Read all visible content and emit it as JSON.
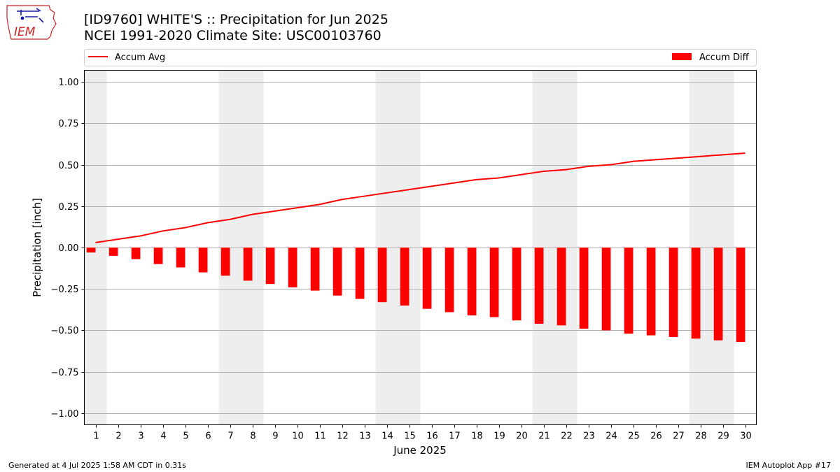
{
  "logo": {
    "text": "IEM"
  },
  "chart_data": {
    "type": "bar",
    "title": "[ID9760] WHITE'S :: Precipitation for Jun 2025",
    "subtitle": "NCEI 1991-2020 Climate Site: USC00103760",
    "xlabel": "June 2025",
    "ylabel": "Precipitation [inch]",
    "ylim": [
      -1.07,
      1.07
    ],
    "yticks": [
      1.0,
      0.75,
      0.5,
      0.25,
      0.0,
      -0.25,
      -0.5,
      -0.75,
      -1.0
    ],
    "ytick_labels": [
      "1.00",
      "0.75",
      "0.50",
      "0.25",
      "0.00",
      "−0.25",
      "−0.50",
      "−0.75",
      "−1.00"
    ],
    "x": [
      1,
      2,
      3,
      4,
      5,
      6,
      7,
      8,
      9,
      10,
      11,
      12,
      13,
      14,
      15,
      16,
      17,
      18,
      19,
      20,
      21,
      22,
      23,
      24,
      25,
      26,
      27,
      28,
      29,
      30
    ],
    "xtick_labels": [
      "1",
      "2",
      "3",
      "4",
      "5",
      "6",
      "7",
      "8",
      "9",
      "10",
      "11",
      "12",
      "13",
      "14",
      "15",
      "16",
      "17",
      "18",
      "19",
      "20",
      "21",
      "22",
      "23",
      "24",
      "25",
      "26",
      "27",
      "28",
      "29",
      "30"
    ],
    "weekend_spans": [
      [
        1,
        1
      ],
      [
        7,
        8
      ],
      [
        14,
        15
      ],
      [
        21,
        22
      ],
      [
        28,
        29
      ]
    ],
    "grid": "horizontal",
    "legend_placement": "top",
    "series": [
      {
        "name": "Accum Avg",
        "kind": "line",
        "color": "#ff0000",
        "values": [
          0.03,
          0.05,
          0.07,
          0.1,
          0.12,
          0.15,
          0.17,
          0.2,
          0.22,
          0.24,
          0.26,
          0.29,
          0.31,
          0.33,
          0.35,
          0.37,
          0.39,
          0.41,
          0.42,
          0.44,
          0.46,
          0.47,
          0.49,
          0.5,
          0.52,
          0.53,
          0.54,
          0.55,
          0.56,
          0.57
        ]
      },
      {
        "name": "Accum Diff",
        "kind": "bar",
        "color": "#ff0000",
        "values": [
          -0.03,
          -0.05,
          -0.07,
          -0.1,
          -0.12,
          -0.15,
          -0.17,
          -0.2,
          -0.22,
          -0.24,
          -0.26,
          -0.29,
          -0.31,
          -0.33,
          -0.35,
          -0.37,
          -0.39,
          -0.41,
          -0.42,
          -0.44,
          -0.46,
          -0.47,
          -0.49,
          -0.5,
          -0.52,
          -0.53,
          -0.54,
          -0.55,
          -0.56,
          -0.57
        ]
      }
    ]
  },
  "footer": {
    "left": "Generated at 4 Jul 2025 1:58 AM CDT in 0.31s",
    "right": "IEM Autoplot App #17"
  }
}
